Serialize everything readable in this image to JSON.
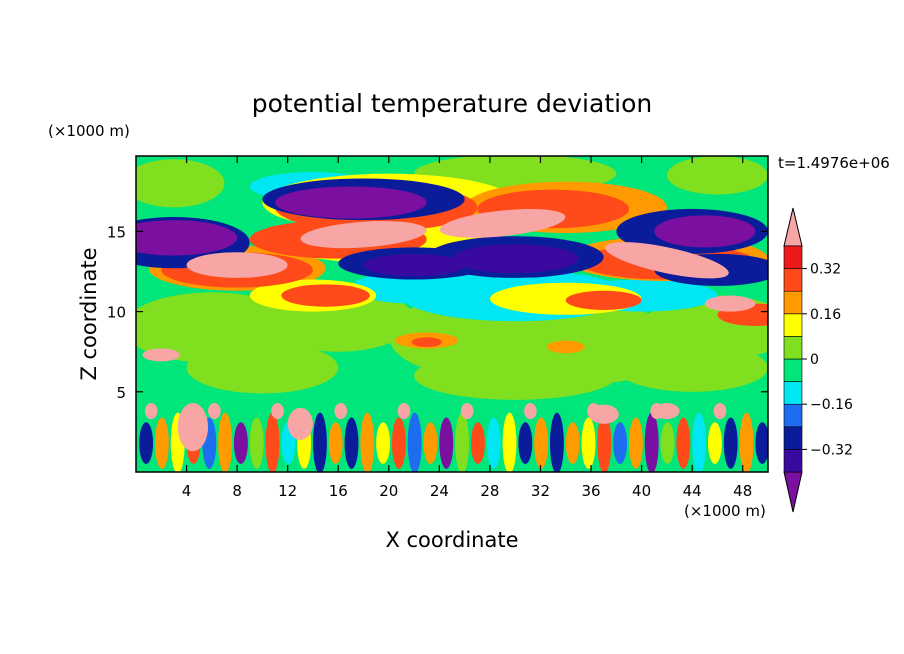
{
  "chart_data": {
    "type": "heatmap",
    "title": "potential temperature deviation",
    "xlabel": "X coordinate",
    "ylabel": "Z coordinate",
    "x_unit": "(×1000 m)",
    "y_unit": "(×1000 m)",
    "time_label": "t=1.4976e+06",
    "xlim": [
      0,
      50
    ],
    "ylim": [
      0,
      19.7
    ],
    "x_ticks": [
      4,
      8,
      12,
      16,
      20,
      24,
      28,
      32,
      36,
      40,
      44,
      48
    ],
    "y_ticks": [
      5,
      10,
      15
    ],
    "x_tick_labels": [
      "4",
      "8",
      "12",
      "16",
      "20",
      "24",
      "28",
      "32",
      "36",
      "40",
      "44",
      "48"
    ],
    "y_tick_labels": [
      "5",
      "10",
      "15"
    ],
    "colorbar": {
      "levels": [
        -0.4,
        -0.32,
        -0.24,
        -0.16,
        -0.08,
        0,
        0.08,
        0.16,
        0.24,
        0.32,
        0.4
      ],
      "labels": [
        "0.32",
        "0.16",
        "0",
        "−0.16",
        "−0.32"
      ],
      "label_values": [
        0.32,
        0.16,
        0,
        -0.16,
        -0.32
      ],
      "colors": [
        "#7a0fa0",
        "#3a0aa0",
        "#0a1c9a",
        "#1e6df0",
        "#00e6f2",
        "#00e67a",
        "#80e020",
        "#ffff00",
        "#ff9a00",
        "#ff4a1a",
        "#ee1a1a",
        "#f7a5a5"
      ]
    }
  }
}
